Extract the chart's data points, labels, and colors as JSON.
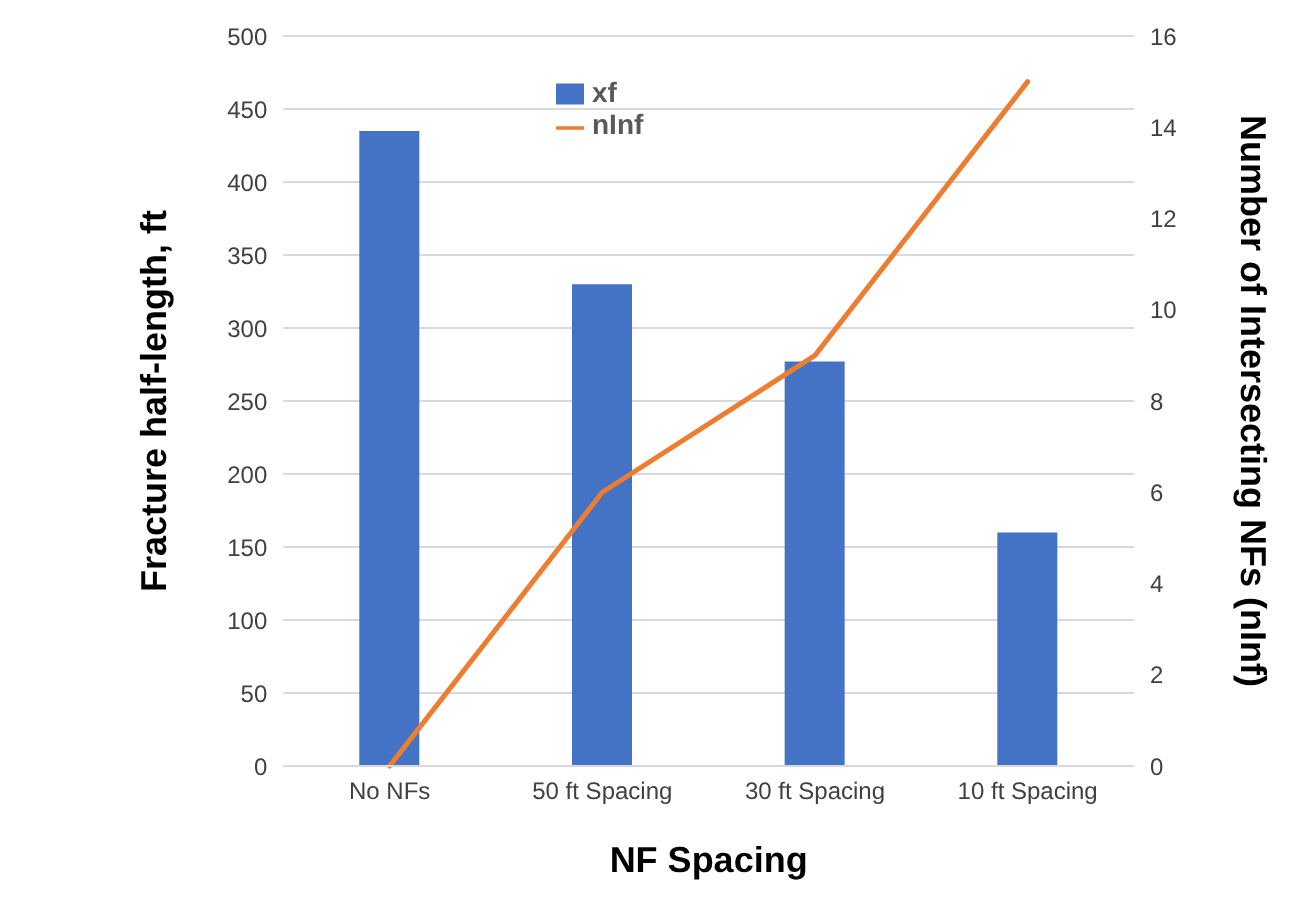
{
  "chart_data": {
    "type": "bar",
    "xlabel": "NF Spacing",
    "ylabel": "Fracture half-length, ft",
    "y2label": "Number of Intersecting NFs (nInf)",
    "categories": [
      "No NFs",
      "50 ft Spacing",
      "30 ft Spacing",
      "10 ft Spacing"
    ],
    "series": [
      {
        "name": "xf",
        "color": "#4472c4",
        "values": [
          435,
          330,
          277,
          160
        ]
      },
      {
        "name": "nInf",
        "type": "line",
        "axis": "y2",
        "color": "#ed7d31",
        "values": [
          0,
          6,
          9,
          15
        ]
      }
    ],
    "ylim": [
      0,
      500
    ],
    "yticks": [
      0,
      50,
      100,
      150,
      200,
      250,
      300,
      350,
      400,
      450,
      500
    ],
    "y2lim": [
      0,
      16
    ],
    "y2ticks": [
      0,
      2,
      4,
      6,
      8,
      10,
      12,
      14,
      16
    ],
    "grid": "y",
    "legend": "top"
  }
}
